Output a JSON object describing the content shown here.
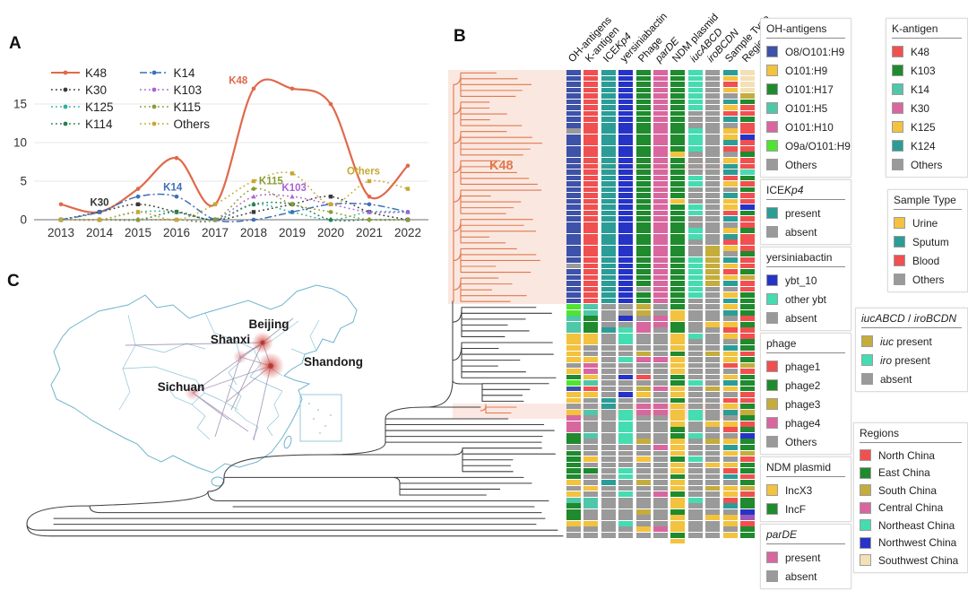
{
  "figure": {
    "panel_a_label": "A",
    "panel_b_label": "B",
    "panel_c_label": "C"
  },
  "chart_data": {
    "type": "line",
    "x": [
      2013,
      2014,
      2015,
      2016,
      2017,
      2018,
      2019,
      2020,
      2021,
      2022
    ],
    "y_ticks": [
      0,
      5,
      10,
      15
    ],
    "ylim": [
      0,
      17.5
    ],
    "grid": "horizontal",
    "legend_position": "top-left",
    "series": [
      {
        "name": "K48",
        "color": "#E0694B",
        "dash": "solid",
        "marker": "circle",
        "values": [
          2,
          1,
          4,
          8,
          2,
          17,
          17,
          15,
          3,
          7
        ]
      },
      {
        "name": "K30",
        "color": "#3a3a3a",
        "dash": "dot",
        "marker": "square",
        "values": [
          0,
          1,
          2,
          1,
          0,
          1,
          2,
          3,
          1,
          0
        ]
      },
      {
        "name": "K125",
        "color": "#35AE9E",
        "dash": "dot",
        "marker": "triangle",
        "values": [
          0,
          0,
          1,
          1,
          0,
          2,
          1,
          0,
          1,
          1
        ]
      },
      {
        "name": "K114",
        "color": "#2E7D4F",
        "dash": "dot",
        "marker": "diamond",
        "values": [
          0,
          0,
          0,
          1,
          0,
          2,
          2,
          0,
          0,
          0
        ]
      },
      {
        "name": "K14",
        "color": "#3E6FB5",
        "dash": "dashdot",
        "marker": "circle",
        "values": [
          0,
          1,
          3,
          3,
          0,
          0,
          1,
          2,
          2,
          1
        ]
      },
      {
        "name": "K103",
        "color": "#A963D6",
        "dash": "dot",
        "marker": "triangle",
        "values": [
          0,
          0,
          0,
          0,
          0,
          3,
          3,
          2,
          1,
          1
        ]
      },
      {
        "name": "K115",
        "color": "#8A9C33",
        "dash": "dot",
        "marker": "circle",
        "values": [
          0,
          0,
          0,
          0,
          0,
          4,
          2,
          1,
          0,
          0
        ]
      },
      {
        "name": "Others",
        "color": "#C6A832",
        "dash": "dot",
        "marker": "square",
        "values": [
          0,
          0,
          1,
          0,
          2,
          5,
          6,
          2,
          5,
          4
        ]
      }
    ],
    "annotations": [
      {
        "text": "K48",
        "year": 2017.6,
        "value": 17.6,
        "color": "#E0694B"
      },
      {
        "text": "K30",
        "year": 2014.0,
        "value": 1.8,
        "color": "#333333"
      },
      {
        "text": "K14",
        "year": 2015.9,
        "value": 3.8,
        "color": "#3E6FB5"
      },
      {
        "text": "K115",
        "year": 2018.45,
        "value": 4.6,
        "color": "#8A9C33"
      },
      {
        "text": "K103",
        "year": 2019.05,
        "value": 3.7,
        "color": "#A963D6"
      },
      {
        "text": "Others",
        "year": 2020.85,
        "value": 5.9,
        "color": "#C6A832"
      }
    ]
  },
  "tree": {
    "clade_label": "K48"
  },
  "heatmap": {
    "palette": {
      "b": "#3D52A8",
      "y": "#F3C23E",
      "g": "#1F8A2E",
      "t": "#4FC7A8",
      "p": "#D8679F",
      "l": "#4FE431",
      "G": "#9A9A9A",
      "r": "#F05050",
      "T": "#2B9D96",
      "B": "#2633C6",
      "q": "#45DCB2",
      "o": "#C4AD3D",
      "c": "#F4E0B6",
      "m": "#9B59B6"
    },
    "columns": [
      {
        "label": "OH-antigens"
      },
      {
        "label": "K-antigen"
      },
      {
        "label": "ICEKp4",
        "parts": [
          {
            "t": "ICE"
          },
          {
            "t": "Kp4",
            "i": true
          }
        ]
      },
      {
        "label": "yersiniabactin"
      },
      {
        "label": "Phage"
      },
      {
        "label": "parDE",
        "parts": [
          {
            "t": "parDE",
            "i": true
          }
        ]
      },
      {
        "label": "NDM plasmid"
      },
      {
        "label": "iucABCD",
        "parts": [
          {
            "t": "iucABCD",
            "i": true
          }
        ]
      },
      {
        "label": "iroBCDN",
        "parts": [
          {
            "t": "iroBCDN",
            "i": true
          }
        ]
      },
      {
        "label": "Sample Type"
      },
      {
        "label": "Regions"
      }
    ],
    "cells": [
      "bbbbbbbbbbGbbbbbbbbbbbbbbbbbbbbbbGbbbbbblltttyyyyyGyglbyyGypppggGgggggyGytgggyGG",
      "rrrrrrrrrrrrrrrrrrrrrrrrrrrrrrrrrrrrrrrrttgggyyGGyppytryGGtGGGtGGGyGgGGyGttGGyGG",
      "TTTTTTTTTTTTTTTTTTTTTTTTTTTTTTTTTTTTTTTTGGGGTGGGGGGGGGGGTTGGGGGGGGGGGGTGGGGGGGGG",
      "BBBBBBBBBBBBBBBBBBBBBBBBBBBBBBBBBBBBBBBBGGBGqqqGGqGGBGGBGGqqqqqqGGGGqqGGqGGGGqGG",
      "gggggggggggggggggggggggggggggggggggggGggooGppGGGopGGrGoyGppGGGGoGGyGGGoGGGGoGGyG",
      "ppppppppppppppppppppppppppppppppppppppppGGppGGGGGpGGGGpGGppGGGGGpGGGGGGGpGGGGGpG",
      "ggggggggggggggygggggggyggggggggggggggggggyyggyyygyyyggyygyyyyggyyygyygyygyygyyygy",
      "qqqqqqqGGGqqqqGGGGqqGGGqqGGqqGGGqqqqqqqGGGGGGqGGGGGGGqGGGGqqGGqGGGqGGGGGGqGGGGGG",
      "GGGGGGGGGGGGGGGGGGGGGGGGGGGGGGoooooooGGGGGGyGGGGoGGGGGoGGGGGyGGoGGGyGGGoGGGGyGGG",
      "TyryGTyrTGyyTrGyTTryGTyyrTGyTryGTyryTGyTyTGyryGTyyrGyTyGryTGyrGyTyGyrTGyyrTGyyGy",
      "ccccogrrgrrBrrgrrqgrgrrBgrrgrrrgrrgorrggggrgrrggrgorgggrrgogrgBggorggrgorggBmrgg"
    ]
  },
  "legends": {
    "left": [
      {
        "title": "OH-antigens",
        "items": [
          {
            "label": "O8/O101:H9",
            "color": "#3D52A8"
          },
          {
            "label": "O101:H9",
            "color": "#F3C23E"
          },
          {
            "label": "O101:H17",
            "color": "#1F8A2E"
          },
          {
            "label": "O101:H5",
            "color": "#4FC7A8"
          },
          {
            "label": "O101:H10",
            "color": "#D8679F"
          },
          {
            "label": "O9a/O101:H9",
            "color": "#4FE431"
          },
          {
            "label": "Others",
            "color": "#9A9A9A"
          }
        ]
      },
      {
        "title": "ICEKp4",
        "title_parts": [
          {
            "t": "ICE"
          },
          {
            "t": "Kp4",
            "i": true
          }
        ],
        "items": [
          {
            "label": "present",
            "color": "#2B9D96"
          },
          {
            "label": "absent",
            "color": "#9A9A9A"
          }
        ]
      },
      {
        "title": "yersiniabactin",
        "items": [
          {
            "label": "ybt_10",
            "color": "#2633C6"
          },
          {
            "label": "other ybt",
            "color": "#45DCB2"
          },
          {
            "label": "absent",
            "color": "#9A9A9A"
          }
        ]
      },
      {
        "title": "phage",
        "items": [
          {
            "label": "phage1",
            "color": "#F05050"
          },
          {
            "label": "phage2",
            "color": "#1F8A2E"
          },
          {
            "label": "phage3",
            "color": "#C4AD3D"
          },
          {
            "label": "phage4",
            "color": "#D8679F"
          },
          {
            "label": "Others",
            "color": "#9A9A9A"
          }
        ]
      },
      {
        "title": "NDM plasmid",
        "items": [
          {
            "label": "IncX3",
            "color": "#F3C23E"
          },
          {
            "label": "IncF",
            "color": "#1F8A2E"
          }
        ]
      },
      {
        "title": "parDE",
        "title_parts": [
          {
            "t": "parDE",
            "i": true
          }
        ],
        "items": [
          {
            "label": "present",
            "color": "#D8679F"
          },
          {
            "label": "absent",
            "color": "#9A9A9A"
          }
        ]
      }
    ],
    "right": [
      {
        "title": "K-antigen",
        "items": [
          {
            "label": "K48",
            "color": "#F05050"
          },
          {
            "label": "K103",
            "color": "#1F8A2E"
          },
          {
            "label": "K14",
            "color": "#4FC7A8"
          },
          {
            "label": "K30",
            "color": "#D8679F"
          },
          {
            "label": "K125",
            "color": "#F3C23E"
          },
          {
            "label": "K124",
            "color": "#2B9D96"
          },
          {
            "label": "Others",
            "color": "#9A9A9A"
          }
        ]
      },
      {
        "title": "Sample Type",
        "items": [
          {
            "label": "Urine",
            "color": "#F3C23E"
          },
          {
            "label": "Sputum",
            "color": "#2B9D96"
          },
          {
            "label": "Blood",
            "color": "#F05050"
          },
          {
            "label": "Others",
            "color": "#9A9A9A"
          }
        ]
      },
      {
        "title": "iucABCD / iroBCDN",
        "title_parts": [
          {
            "t": "iucABCD",
            "i": true
          },
          {
            "t": " / "
          },
          {
            "t": "iroBCDN",
            "i": true
          }
        ],
        "items": [
          {
            "label": "iuc present",
            "color": "#C4AD3D",
            "parts": [
              {
                "t": "iuc",
                "i": true
              },
              {
                "t": " present"
              }
            ]
          },
          {
            "label": "iro present",
            "color": "#45DCB2",
            "parts": [
              {
                "t": "iro",
                "i": true
              },
              {
                "t": " present"
              }
            ]
          },
          {
            "label": "absent",
            "color": "#9A9A9A"
          }
        ]
      },
      {
        "title": "Regions",
        "compact": true,
        "items": [
          {
            "label": "North China",
            "color": "#F05050"
          },
          {
            "label": "East China",
            "color": "#1F8A2E"
          },
          {
            "label": "South China",
            "color": "#C4AD3D"
          },
          {
            "label": "Central China",
            "color": "#D8679F"
          },
          {
            "label": "Northeast China",
            "color": "#45DCB2"
          },
          {
            "label": "Northwest China",
            "color": "#2633C6"
          },
          {
            "label": "Southwest China",
            "color": "#F4E0B6"
          }
        ]
      }
    ]
  },
  "map": {
    "cities": [
      {
        "name": "Beijing"
      },
      {
        "name": "Shanxi"
      },
      {
        "name": "Shandong"
      },
      {
        "name": "Sichuan"
      }
    ]
  }
}
